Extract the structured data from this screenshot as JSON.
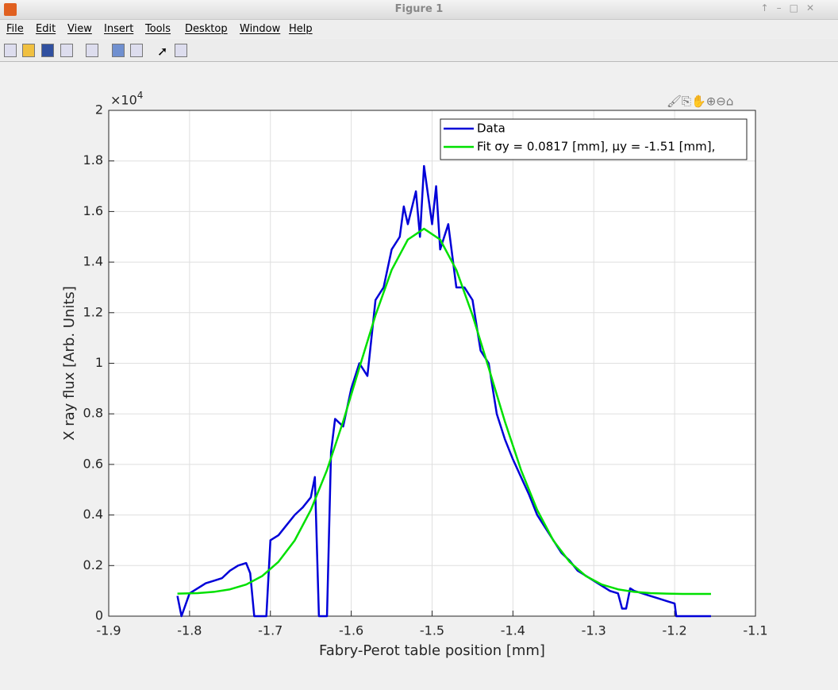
{
  "window": {
    "title": "Figure 1",
    "menu": [
      "File",
      "Edit",
      "View",
      "Insert",
      "Tools",
      "Desktop",
      "Window",
      "Help"
    ]
  },
  "chart_data": {
    "type": "line",
    "xlabel": "Fabry-Perot table position [mm]",
    "ylabel": "X ray flux [Arb. Units]",
    "y_multiplier": {
      "base": "×10",
      "exponent": "4"
    },
    "xlim": [
      -1.9,
      -1.1
    ],
    "xticks": [
      -1.9,
      -1.8,
      -1.7,
      -1.6,
      -1.5,
      -1.4,
      -1.3,
      -1.2,
      -1.1
    ],
    "ylim": [
      0,
      2
    ],
    "yticks": [
      0,
      0.2,
      0.4,
      0.6,
      0.8,
      1,
      1.2,
      1.4,
      1.6,
      1.8,
      2
    ],
    "grid": true,
    "legend": "upper right",
    "series": [
      {
        "name": "Data",
        "color": "#0000d8",
        "x": [
          -1.815,
          -1.81,
          -1.8,
          -1.79,
          -1.78,
          -1.77,
          -1.76,
          -1.75,
          -1.74,
          -1.73,
          -1.725,
          -1.72,
          -1.71,
          -1.705,
          -1.7,
          -1.69,
          -1.68,
          -1.67,
          -1.66,
          -1.65,
          -1.645,
          -1.64,
          -1.63,
          -1.625,
          -1.62,
          -1.61,
          -1.6,
          -1.59,
          -1.58,
          -1.57,
          -1.56,
          -1.55,
          -1.54,
          -1.535,
          -1.53,
          -1.52,
          -1.515,
          -1.51,
          -1.5,
          -1.495,
          -1.49,
          -1.48,
          -1.47,
          -1.46,
          -1.45,
          -1.44,
          -1.43,
          -1.42,
          -1.41,
          -1.4,
          -1.39,
          -1.38,
          -1.37,
          -1.36,
          -1.35,
          -1.34,
          -1.33,
          -1.32,
          -1.31,
          -1.3,
          -1.29,
          -1.28,
          -1.27,
          -1.265,
          -1.26,
          -1.255,
          -1.25,
          -1.24,
          -1.23,
          -1.22,
          -1.21,
          -1.2,
          -1.198,
          -1.19,
          -1.17,
          -1.155
        ],
        "values": [
          0.08,
          0.0,
          0.09,
          0.11,
          0.13,
          0.14,
          0.15,
          0.18,
          0.2,
          0.21,
          0.17,
          0.0,
          0.0,
          0.0,
          0.3,
          0.32,
          0.36,
          0.4,
          0.43,
          0.47,
          0.55,
          0.0,
          0.0,
          0.65,
          0.78,
          0.75,
          0.9,
          1.0,
          0.95,
          1.25,
          1.3,
          1.45,
          1.5,
          1.62,
          1.55,
          1.68,
          1.5,
          1.78,
          1.55,
          1.7,
          1.45,
          1.55,
          1.3,
          1.3,
          1.25,
          1.05,
          1.0,
          0.8,
          0.7,
          0.62,
          0.55,
          0.48,
          0.4,
          0.35,
          0.3,
          0.25,
          0.22,
          0.18,
          0.16,
          0.14,
          0.12,
          0.1,
          0.09,
          0.03,
          0.03,
          0.11,
          0.1,
          0.09,
          0.08,
          0.07,
          0.06,
          0.05,
          0.0,
          0.0,
          0.0,
          0.0
        ]
      },
      {
        "name": "Fit σy = 0.0817 [mm],  μy = -1.51 [mm],",
        "color": "#00e000",
        "x": [
          -1.815,
          -1.79,
          -1.77,
          -1.75,
          -1.73,
          -1.71,
          -1.69,
          -1.67,
          -1.65,
          -1.63,
          -1.61,
          -1.59,
          -1.57,
          -1.55,
          -1.53,
          -1.51,
          -1.49,
          -1.47,
          -1.45,
          -1.43,
          -1.41,
          -1.39,
          -1.37,
          -1.35,
          -1.33,
          -1.31,
          -1.29,
          -1.27,
          -1.25,
          -1.23,
          -1.21,
          -1.19,
          -1.17,
          -1.155
        ],
        "values": [
          0.089,
          0.091,
          0.096,
          0.106,
          0.125,
          0.159,
          0.215,
          0.299,
          0.42,
          0.578,
          0.77,
          0.982,
          1.19,
          1.369,
          1.489,
          1.532,
          1.489,
          1.369,
          1.19,
          0.982,
          0.77,
          0.578,
          0.42,
          0.299,
          0.215,
          0.159,
          0.125,
          0.106,
          0.096,
          0.091,
          0.089,
          0.088,
          0.088,
          0.088
        ]
      }
    ]
  }
}
